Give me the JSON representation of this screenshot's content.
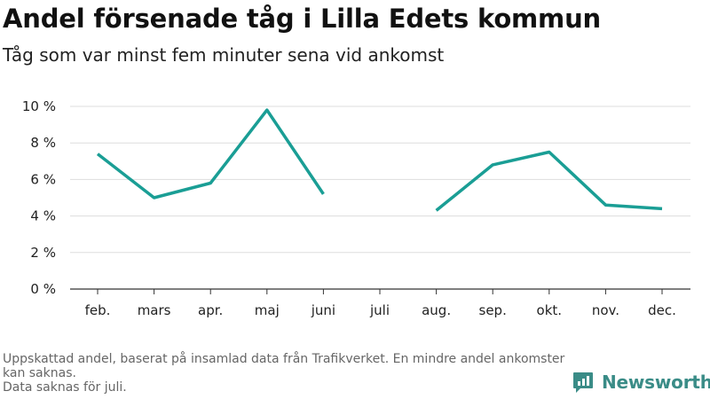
{
  "header": {
    "title": "Andel försenade tåg i Lilla Edets kommun",
    "subtitle": "Tåg som var minst fem minuter sena vid ankomst"
  },
  "chart_data": {
    "type": "line",
    "categories": [
      "feb.",
      "mars",
      "apr.",
      "maj",
      "juni",
      "juli",
      "aug.",
      "sep.",
      "okt.",
      "nov.",
      "dec."
    ],
    "series": [
      {
        "values": [
          7.4,
          5.0,
          5.8,
          9.8,
          5.2,
          null,
          4.3,
          6.8,
          7.5,
          4.6,
          4.4
        ]
      }
    ],
    "yticks": [
      0,
      2,
      4,
      6,
      8,
      10
    ],
    "ytick_labels": [
      "0 %",
      "2 %",
      "4 %",
      "6 %",
      "8 %",
      "10 %"
    ],
    "ylim": [
      0,
      10
    ],
    "grid": true,
    "line_color": "#1a9e95"
  },
  "footer": {
    "note_line1": "Uppskattad andel, baserat på insamlad data från Trafikverket. En mindre andel ankomster kan saknas.",
    "note_line2": "Data saknas för juli.",
    "brand": "Newsworthy",
    "brand_color": "#3a8c87"
  }
}
